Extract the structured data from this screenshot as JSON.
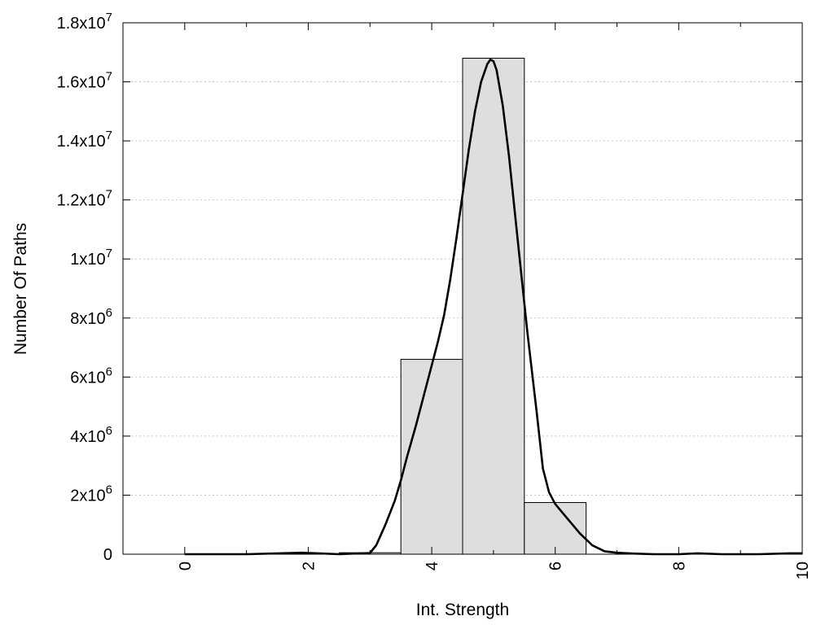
{
  "chart_data": {
    "type": "bar",
    "xlabel": "Int. Strength",
    "ylabel": "Number Of Paths",
    "xlim": [
      -1,
      10
    ],
    "ylim": [
      0,
      18000000
    ],
    "grid": "horizontal-dotted",
    "x_ticks": [
      {
        "value": 0,
        "label": "0"
      },
      {
        "value": 2,
        "label": "2"
      },
      {
        "value": 4,
        "label": "4"
      },
      {
        "value": 6,
        "label": "6"
      },
      {
        "value": 8,
        "label": "8"
      },
      {
        "value": 10,
        "label": "10"
      }
    ],
    "x_minor_ticks": [
      1,
      3,
      5,
      7,
      9
    ],
    "y_ticks": [
      {
        "value": 0,
        "base": "0",
        "exp": ""
      },
      {
        "value": 2000000,
        "base": "2x10",
        "exp": "6"
      },
      {
        "value": 4000000,
        "base": "4x10",
        "exp": "6"
      },
      {
        "value": 6000000,
        "base": "6x10",
        "exp": "6"
      },
      {
        "value": 8000000,
        "base": "8x10",
        "exp": "6"
      },
      {
        "value": 10000000,
        "base": "1x10",
        "exp": "7"
      },
      {
        "value": 12000000,
        "base": "1.2x10",
        "exp": "7"
      },
      {
        "value": 14000000,
        "base": "1.4x10",
        "exp": "7"
      },
      {
        "value": 16000000,
        "base": "1.6x10",
        "exp": "7"
      },
      {
        "value": 18000000,
        "base": "1.8x10",
        "exp": "7"
      }
    ],
    "bars": [
      {
        "x": 3,
        "value": 50000
      },
      {
        "x": 4,
        "value": 6600000
      },
      {
        "x": 5,
        "value": 16800000
      },
      {
        "x": 6,
        "value": 1750000
      }
    ],
    "bar_width": 1,
    "bar_color": "#dedede",
    "curve": {
      "color": "#000000",
      "x": [
        0,
        1,
        1.9,
        2.5,
        3.0,
        3.1,
        3.25,
        3.4,
        3.5,
        3.6,
        3.75,
        3.9,
        4.0,
        4.1,
        4.2,
        4.3,
        4.4,
        4.5,
        4.6,
        4.7,
        4.8,
        4.9,
        4.95,
        5.0,
        5.05,
        5.15,
        5.25,
        5.4,
        5.55,
        5.7,
        5.8,
        5.9,
        6.0,
        6.2,
        6.4,
        6.6,
        6.8,
        7.0,
        7.3,
        7.6,
        8.0,
        8.3,
        8.7,
        9.3,
        9.8,
        10.0
      ],
      "y": [
        0,
        0,
        50000,
        0,
        40000,
        300000,
        1000000,
        1800000,
        2500000,
        3300000,
        4400000,
        5600000,
        6400000,
        7200000,
        8100000,
        9300000,
        10700000,
        12200000,
        13700000,
        15000000,
        16000000,
        16600000,
        16750000,
        16700000,
        16400000,
        15200000,
        13500000,
        10500000,
        7500000,
        4800000,
        2900000,
        2100000,
        1700000,
        1200000,
        700000,
        300000,
        100000,
        50000,
        20000,
        0,
        0,
        30000,
        0,
        0,
        30000,
        30000
      ]
    }
  }
}
